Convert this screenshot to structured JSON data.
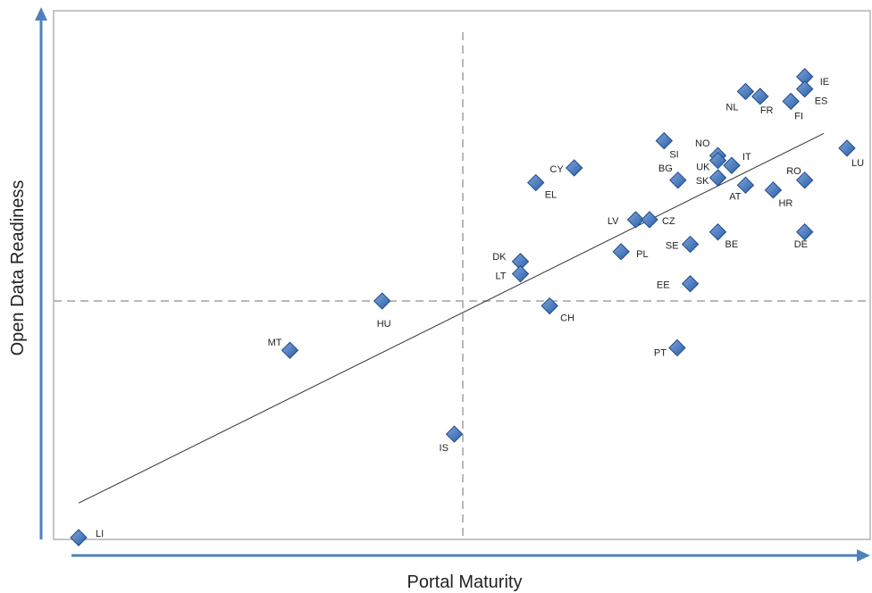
{
  "chart_data": {
    "type": "scatter",
    "title": "",
    "xlabel": "Portal Maturity",
    "ylabel": "Open Data Readiness",
    "xlim": [
      0,
      100
    ],
    "ylim": [
      0,
      100
    ],
    "grid": false,
    "legend": "none",
    "points": [
      {
        "label": "IE",
        "x": 94.5,
        "y": 93.5
      },
      {
        "label": "ES",
        "x": 94.5,
        "y": 91.0
      },
      {
        "label": "NL",
        "x": 86.8,
        "y": 90.5
      },
      {
        "label": "FR",
        "x": 88.7,
        "y": 89.5
      },
      {
        "label": "FI",
        "x": 92.7,
        "y": 88.5
      },
      {
        "label": "LU",
        "x": 100.0,
        "y": 79.0
      },
      {
        "label": "SI",
        "x": 76.2,
        "y": 80.5
      },
      {
        "label": "NO",
        "x": 83.2,
        "y": 77.5
      },
      {
        "label": "UK",
        "x": 83.2,
        "y": 76.5
      },
      {
        "label": "IT",
        "x": 85.0,
        "y": 75.5
      },
      {
        "label": "BG",
        "x": 78.0,
        "y": 72.5
      },
      {
        "label": "SK",
        "x": 83.2,
        "y": 73.0
      },
      {
        "label": "AT",
        "x": 86.8,
        "y": 71.5
      },
      {
        "label": "HR",
        "x": 90.4,
        "y": 70.5
      },
      {
        "label": "RO",
        "x": 94.5,
        "y": 72.5
      },
      {
        "label": "CY",
        "x": 64.5,
        "y": 75.0
      },
      {
        "label": "EL",
        "x": 59.5,
        "y": 72.0
      },
      {
        "label": "LV",
        "x": 72.5,
        "y": 64.5
      },
      {
        "label": "CZ",
        "x": 74.3,
        "y": 64.5
      },
      {
        "label": "BE",
        "x": 83.2,
        "y": 62.0
      },
      {
        "label": "DE",
        "x": 94.5,
        "y": 62.0
      },
      {
        "label": "SE",
        "x": 79.6,
        "y": 59.5
      },
      {
        "label": "PL",
        "x": 70.6,
        "y": 58.0
      },
      {
        "label": "DK",
        "x": 57.5,
        "y": 56.0
      },
      {
        "label": "LT",
        "x": 57.5,
        "y": 53.5
      },
      {
        "label": "EE",
        "x": 79.6,
        "y": 51.5
      },
      {
        "label": "CH",
        "x": 61.3,
        "y": 47.0
      },
      {
        "label": "HU",
        "x": 39.5,
        "y": 48.0
      },
      {
        "label": "MT",
        "x": 27.5,
        "y": 38.0
      },
      {
        "label": "PT",
        "x": 77.9,
        "y": 38.5
      },
      {
        "label": "IS",
        "x": 48.9,
        "y": 21.0
      },
      {
        "label": "LI",
        "x": 0.0,
        "y": 0.0
      }
    ],
    "trendline": {
      "x": [
        0.0,
        97.0
      ],
      "y": [
        7.0,
        82.0
      ]
    },
    "reference_lines": {
      "x": 50.0,
      "y": 48.0
    }
  },
  "colors": {
    "marker": "#3a6db5",
    "marker_dark": "#1f4a86",
    "axis_arrow": "#4f81bd",
    "reference": "#b8b8b8",
    "trend": "#333333",
    "frame": "#8c8c8c"
  }
}
